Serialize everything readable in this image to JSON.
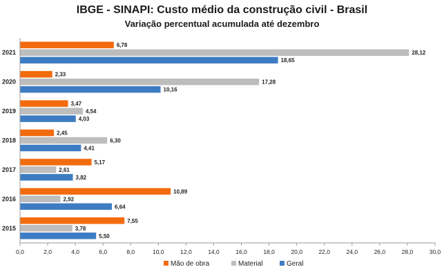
{
  "chart_data": {
    "type": "bar",
    "orientation": "horizontal",
    "title": "IBGE - SINAPI: Custo médio da construção civil - Brasil",
    "subtitle": "Variação percentual acumulada até dezembro",
    "categories": [
      "2021",
      "2020",
      "2019",
      "2018",
      "2017",
      "2016",
      "2015"
    ],
    "series": [
      {
        "name": "Mão de obra",
        "color": "#f26b0f",
        "values": [
          6.78,
          2.33,
          3.47,
          2.45,
          5.17,
          10.89,
          7.55
        ],
        "labels": [
          "6,78",
          "2,33",
          "3,47",
          "2,45",
          "5,17",
          "10,89",
          "7,55"
        ]
      },
      {
        "name": "Material",
        "color": "#bdbdbd",
        "values": [
          28.12,
          17.28,
          4.54,
          6.3,
          2.61,
          2.92,
          3.78
        ],
        "labels": [
          "28,12",
          "17,28",
          "4,54",
          "6,30",
          "2,61",
          "2,92",
          "3,78"
        ]
      },
      {
        "name": "Geral",
        "color": "#3d7cc3",
        "values": [
          18.65,
          10.16,
          4.03,
          4.41,
          3.82,
          6.64,
          5.5
        ],
        "labels": [
          "18,65",
          "10,16",
          "4,03",
          "4,41",
          "3,82",
          "6,64",
          "5,50"
        ]
      }
    ],
    "x_ticks": [
      "0,0",
      "2,0",
      "4,0",
      "6,0",
      "8,0",
      "10,0",
      "12,0",
      "14,0",
      "16,0",
      "18,0",
      "20,0",
      "22,0",
      "24,0",
      "26,0",
      "28,0",
      "30,0"
    ],
    "xlim": [
      0,
      30
    ],
    "legend": "bottom",
    "grid": false
  }
}
